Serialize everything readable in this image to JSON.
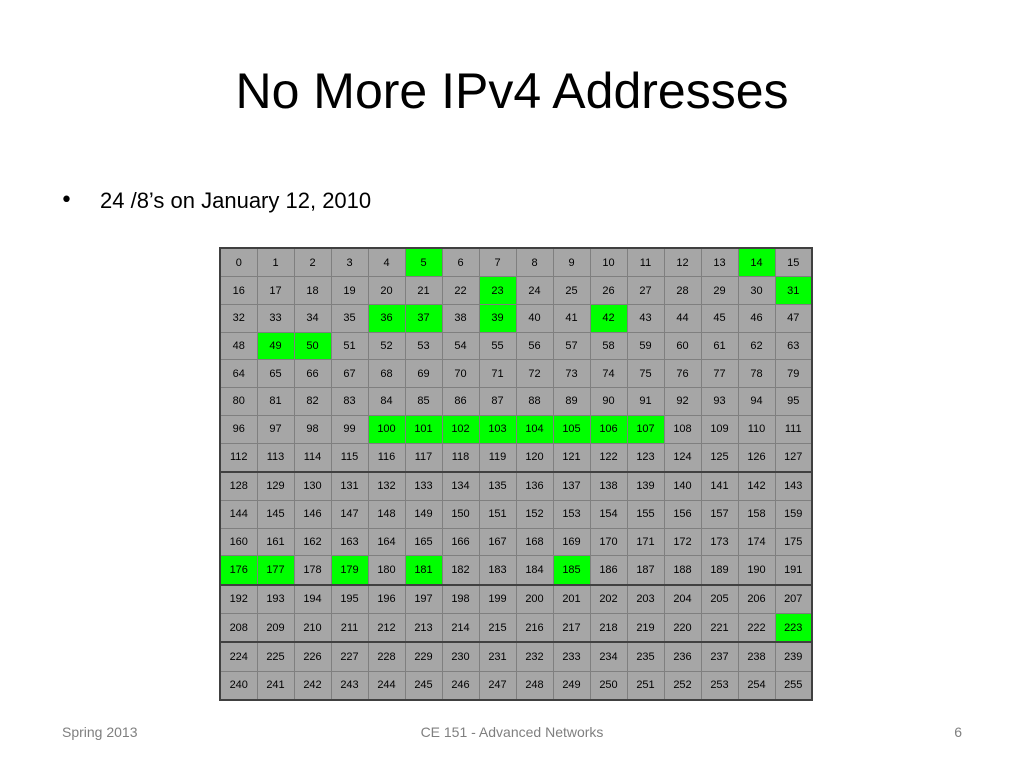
{
  "title": "No More IPv4 Addresses",
  "bullet": "24 /8’s on January 12, 2010",
  "table": {
    "rows": [
      [
        0,
        1,
        2,
        3,
        4,
        5,
        6,
        7,
        8,
        9,
        10,
        11,
        12,
        13,
        14,
        15
      ],
      [
        16,
        17,
        18,
        19,
        20,
        21,
        22,
        23,
        24,
        25,
        26,
        27,
        28,
        29,
        30,
        31
      ],
      [
        32,
        33,
        34,
        35,
        36,
        37,
        38,
        39,
        40,
        41,
        42,
        43,
        44,
        45,
        46,
        47
      ],
      [
        48,
        49,
        50,
        51,
        52,
        53,
        54,
        55,
        56,
        57,
        58,
        59,
        60,
        61,
        62,
        63
      ],
      [
        64,
        65,
        66,
        67,
        68,
        69,
        70,
        71,
        72,
        73,
        74,
        75,
        76,
        77,
        78,
        79
      ],
      [
        80,
        81,
        82,
        83,
        84,
        85,
        86,
        87,
        88,
        89,
        90,
        91,
        92,
        93,
        94,
        95
      ],
      [
        96,
        97,
        98,
        99,
        100,
        101,
        102,
        103,
        104,
        105,
        106,
        107,
        108,
        109,
        110,
        111
      ],
      [
        112,
        113,
        114,
        115,
        116,
        117,
        118,
        119,
        120,
        121,
        122,
        123,
        124,
        125,
        126,
        127
      ],
      [
        128,
        129,
        130,
        131,
        132,
        133,
        134,
        135,
        136,
        137,
        138,
        139,
        140,
        141,
        142,
        143
      ],
      [
        144,
        145,
        146,
        147,
        148,
        149,
        150,
        151,
        152,
        153,
        154,
        155,
        156,
        157,
        158,
        159
      ],
      [
        160,
        161,
        162,
        163,
        164,
        165,
        166,
        167,
        168,
        169,
        170,
        171,
        172,
        173,
        174,
        175
      ],
      [
        176,
        177,
        178,
        179,
        180,
        181,
        182,
        183,
        184,
        185,
        186,
        187,
        188,
        189,
        190,
        191
      ],
      [
        192,
        193,
        194,
        195,
        196,
        197,
        198,
        199,
        200,
        201,
        202,
        203,
        204,
        205,
        206,
        207
      ],
      [
        208,
        209,
        210,
        211,
        212,
        213,
        214,
        215,
        216,
        217,
        218,
        219,
        220,
        221,
        222,
        223
      ],
      [
        224,
        225,
        226,
        227,
        228,
        229,
        230,
        231,
        232,
        233,
        234,
        235,
        236,
        237,
        238,
        239
      ],
      [
        240,
        241,
        242,
        243,
        244,
        245,
        246,
        247,
        248,
        249,
        250,
        251,
        252,
        253,
        254,
        255
      ]
    ],
    "highlighted": [
      5,
      14,
      23,
      31,
      36,
      37,
      39,
      42,
      49,
      50,
      100,
      101,
      102,
      103,
      104,
      105,
      106,
      107,
      176,
      177,
      179,
      181,
      185,
      223
    ],
    "highlight_color": "#00ff00",
    "cell_color": "#a6a6a6"
  },
  "footer": {
    "left": "Spring 2013",
    "center": "CE 151 - Advanced Networks",
    "right": "6"
  }
}
